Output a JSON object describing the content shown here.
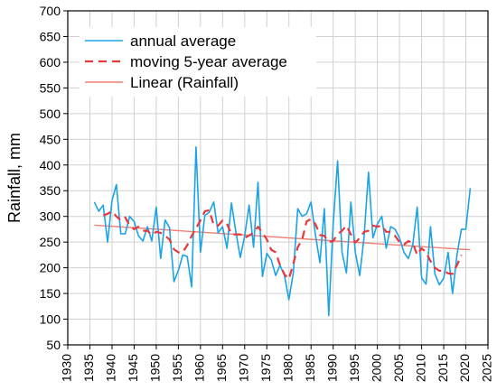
{
  "chart_data": {
    "type": "line",
    "ylabel": "Rainfall, mm",
    "xlabel": "",
    "xlim": [
      1930,
      2025
    ],
    "ylim": [
      50,
      700
    ],
    "xticks": [
      "1930",
      "1935",
      "1940",
      "1945",
      "1950",
      "1955",
      "1960",
      "1965",
      "1970",
      "1975",
      "1980",
      "1985",
      "1990",
      "1995",
      "2000",
      "2005",
      "2010",
      "2015",
      "2020",
      "2025"
    ],
    "yticks": [
      "50",
      "100",
      "150",
      "200",
      "250",
      "300",
      "350",
      "400",
      "450",
      "500",
      "550",
      "600",
      "650",
      "700"
    ],
    "grid": true,
    "legend_position": "top-left",
    "series": [
      {
        "name": "annual average",
        "color": "#1aa3e8",
        "style": "solid",
        "x": [
          1936,
          1937,
          1938,
          1939,
          1940,
          1941,
          1942,
          1943,
          1944,
          1945,
          1946,
          1947,
          1948,
          1949,
          1950,
          1951,
          1952,
          1953,
          1954,
          1955,
          1956,
          1957,
          1958,
          1959,
          1960,
          1961,
          1962,
          1963,
          1964,
          1965,
          1966,
          1967,
          1968,
          1969,
          1970,
          1971,
          1972,
          1973,
          1974,
          1975,
          1976,
          1977,
          1978,
          1979,
          1980,
          1981,
          1982,
          1983,
          1984,
          1985,
          1986,
          1987,
          1988,
          1989,
          1990,
          1991,
          1992,
          1993,
          1994,
          1995,
          1996,
          1997,
          1998,
          1999,
          2000,
          2001,
          2002,
          2003,
          2004,
          2005,
          2006,
          2007,
          2008,
          2009,
          2010,
          2011,
          2012,
          2013,
          2014,
          2015,
          2016,
          2017,
          2018,
          2019,
          2020,
          2021
        ],
        "y": [
          328,
          310,
          322,
          250,
          330,
          362,
          266,
          266,
          300,
          290,
          262,
          252,
          280,
          252,
          318,
          218,
          293,
          278,
          173,
          195,
          225,
          222,
          163,
          435,
          230,
          302,
          308,
          328,
          268,
          280,
          238,
          326,
          270,
          220,
          262,
          322,
          240,
          366,
          183,
          228,
          215,
          185,
          205,
          185,
          138,
          190,
          315,
          300,
          305,
          328,
          264,
          210,
          315,
          107,
          285,
          408,
          230,
          190,
          328,
          230,
          185,
          260,
          386,
          258,
          285,
          300,
          238,
          280,
          275,
          258,
          230,
          218,
          245,
          318,
          180,
          168,
          280,
          188,
          167,
          180,
          230,
          150,
          225,
          275,
          275,
          355
        ]
      },
      {
        "name": "moving 5-year average",
        "color": "#e8383d",
        "style": "dashed",
        "x": [
          1938,
          1939,
          1940,
          1941,
          1942,
          1943,
          1944,
          1945,
          1946,
          1947,
          1948,
          1949,
          1950,
          1951,
          1952,
          1953,
          1954,
          1955,
          1956,
          1957,
          1958,
          1959,
          1960,
          1961,
          1962,
          1963,
          1964,
          1965,
          1966,
          1967,
          1968,
          1969,
          1970,
          1971,
          1972,
          1973,
          1974,
          1975,
          1976,
          1977,
          1978,
          1979,
          1980,
          1981,
          1982,
          1983,
          1984,
          1985,
          1986,
          1987,
          1988,
          1989,
          1990,
          1991,
          1992,
          1993,
          1994,
          1995,
          1996,
          1997,
          1998,
          1999,
          2000,
          2001,
          2002,
          2003,
          2004,
          2005,
          2006,
          2007,
          2008,
          2009,
          2010,
          2011,
          2012,
          2013,
          2014,
          2015,
          2016,
          2017,
          2018,
          2019
        ],
        "y": [
          302,
          305,
          310,
          300,
          292,
          298,
          282,
          275,
          280,
          272,
          272,
          264,
          270,
          268,
          262,
          255,
          236,
          230,
          230,
          244,
          262,
          277,
          292,
          310,
          312,
          283,
          282,
          292,
          286,
          265,
          265,
          265,
          258,
          263,
          268,
          280,
          268,
          255,
          235,
          230,
          205,
          187,
          178,
          208,
          240,
          255,
          290,
          295,
          285,
          264,
          262,
          250,
          252,
          265,
          272,
          282,
          265,
          249,
          258,
          270,
          272,
          282,
          280,
          282,
          270,
          270,
          262,
          250,
          245,
          252,
          248,
          225,
          238,
          230,
          213,
          200,
          194,
          195,
          189,
          188,
          205,
          225
        ]
      },
      {
        "name": "Linear (Rainfall)",
        "color": "#f08070",
        "style": "solid",
        "x": [
          1936,
          2021
        ],
        "y": [
          283,
          235
        ]
      }
    ]
  }
}
